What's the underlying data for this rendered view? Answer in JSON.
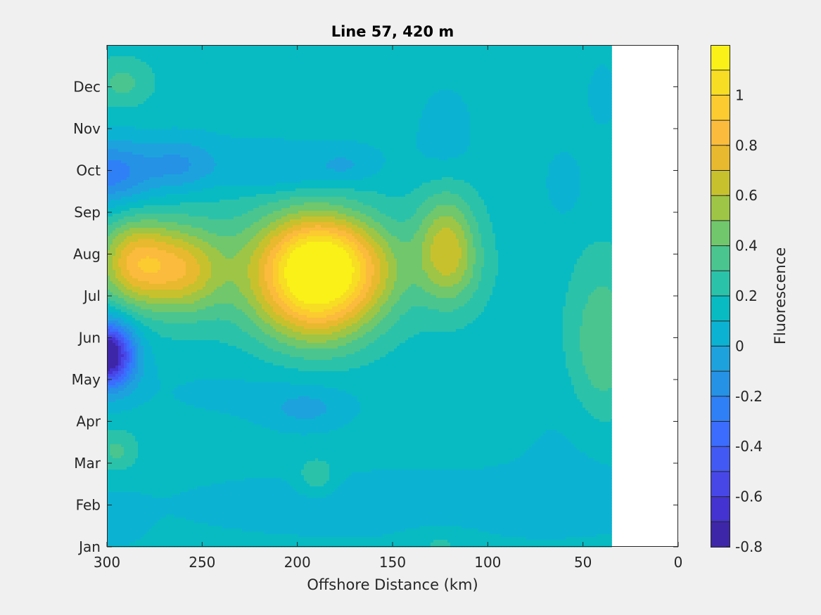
{
  "chart_data": {
    "type": "heatmap",
    "title": "Line 57, 420 m",
    "xlabel": "Offshore Distance (km)",
    "ylabel": "",
    "x_reversed": true,
    "xlim": [
      300,
      0
    ],
    "x_ticks": [
      300,
      250,
      200,
      150,
      100,
      50,
      0
    ],
    "ylim": [
      0,
      12
    ],
    "y_ticks": [
      0,
      1,
      2,
      3,
      4,
      5,
      6,
      7,
      8,
      9,
      10,
      11
    ],
    "y_tick_labels": [
      "Jan",
      "Feb",
      "Mar",
      "Apr",
      "May",
      "Jun",
      "Jul",
      "Aug",
      "Sep",
      "Oct",
      "Nov",
      "Dec"
    ],
    "data_x_extent": [
      300,
      35
    ],
    "base_value": 0.15,
    "colorbar": {
      "label": "Fluorescence",
      "range": [
        -0.8,
        1.2
      ],
      "step": 0.1,
      "ticks": [
        1,
        0.8,
        0.6,
        0.4,
        0.2,
        0,
        -0.2,
        -0.4,
        -0.6,
        -0.8
      ],
      "tick_labels": [
        "1",
        "0.8",
        "0.6",
        "0.4",
        "0.2",
        "0",
        "-0.2",
        "-0.4",
        "-0.6",
        "-0.8"
      ],
      "colors": [
        "#3e26a8",
        "#4433d0",
        "#4747e8",
        "#4359f4",
        "#3b6cfd",
        "#2f80f7",
        "#2592e6",
        "#1da2dd",
        "#0cb2d2",
        "#08bbc3",
        "#2bc2aa",
        "#4ac58f",
        "#70c76c",
        "#9ec545",
        "#c7c12e",
        "#e8b92e",
        "#fbbb3c",
        "#fbcb2f",
        "#f7dd23",
        "#f9f117"
      ]
    },
    "features": [
      {
        "x": 190,
        "y": 6.4,
        "sx": 22,
        "sy": 1.0,
        "amp": 1.05
      },
      {
        "x": 185,
        "y": 7.2,
        "sx": 18,
        "sy": 0.5,
        "amp": 0.15
      },
      {
        "x": 160,
        "y": 6.6,
        "sx": 16,
        "sy": 0.7,
        "amp": 0.15
      },
      {
        "x": 285,
        "y": 6.8,
        "sx": 13,
        "sy": 0.7,
        "amp": 0.55
      },
      {
        "x": 260,
        "y": 6.6,
        "sx": 14,
        "sy": 0.7,
        "amp": 0.45
      },
      {
        "x": 232,
        "y": 6.8,
        "sx": 55,
        "sy": 1.0,
        "amp": 0.15
      },
      {
        "x": 122,
        "y": 7.2,
        "sx": 11,
        "sy": 0.9,
        "amp": 0.45
      },
      {
        "x": 115,
        "y": 6.6,
        "sx": 12,
        "sy": 0.7,
        "amp": 0.1
      },
      {
        "x": 300,
        "y": 4.6,
        "sx": 10,
        "sy": 0.55,
        "amp": -1.05
      },
      {
        "x": 300,
        "y": 8.9,
        "sx": 17,
        "sy": 0.55,
        "amp": -0.4
      },
      {
        "x": 262,
        "y": 9.1,
        "sx": 13,
        "sy": 0.45,
        "amp": -0.2
      },
      {
        "x": 210,
        "y": 8.9,
        "sx": 20,
        "sy": 0.3,
        "amp": -0.12
      },
      {
        "x": 175,
        "y": 9.1,
        "sx": 11,
        "sy": 0.3,
        "amp": -0.12
      },
      {
        "x": 122,
        "y": 10.0,
        "sx": 11,
        "sy": 0.8,
        "amp": -0.1
      },
      {
        "x": 60,
        "y": 8.7,
        "sx": 6,
        "sy": 0.5,
        "amp": -0.15
      },
      {
        "x": 220,
        "y": 9.3,
        "sx": 55,
        "sy": 0.5,
        "amp": -0.08
      },
      {
        "x": 195,
        "y": 3.3,
        "sx": 15,
        "sy": 0.35,
        "amp": -0.15
      },
      {
        "x": 225,
        "y": 3.7,
        "sx": 50,
        "sy": 0.6,
        "amp": -0.07
      },
      {
        "x": 140,
        "y": 1.0,
        "sx": 110,
        "sy": 0.7,
        "amp": -0.1
      },
      {
        "x": 295,
        "y": 0.6,
        "sx": 10,
        "sy": 0.4,
        "amp": -0.1
      },
      {
        "x": 50,
        "y": 2.5,
        "sx": 25,
        "sy": 1.2,
        "amp": -0.07
      },
      {
        "x": 40,
        "y": 4.8,
        "sx": 12,
        "sy": 1.4,
        "amp": 0.25
      },
      {
        "x": 292,
        "y": 11.1,
        "sx": 11,
        "sy": 0.4,
        "amp": 0.18
      },
      {
        "x": 295,
        "y": 2.3,
        "sx": 8,
        "sy": 0.35,
        "amp": 0.18
      },
      {
        "x": 190,
        "y": 1.7,
        "sx": 7,
        "sy": 0.3,
        "amp": 0.18
      },
      {
        "x": 125,
        "y": 0.1,
        "sx": 14,
        "sy": 0.25,
        "amp": 0.1
      },
      {
        "x": 40,
        "y": 10.8,
        "sx": 6,
        "sy": 0.6,
        "amp": -0.1
      }
    ]
  }
}
